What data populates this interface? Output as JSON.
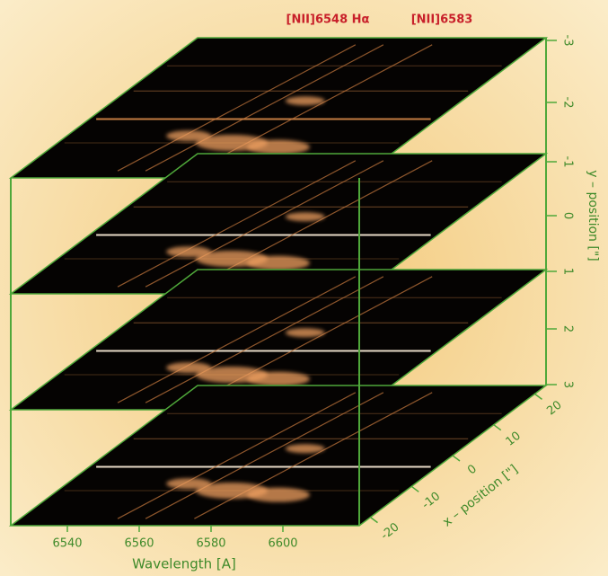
{
  "annotations": [
    "[NII]6548 Hα",
    "[NII]6583"
  ],
  "wavelength_axis": {
    "label": "Wavelength [A]",
    "ticks": [
      "6540",
      "6560",
      "6580",
      "6600"
    ]
  },
  "x_axis": {
    "label": "x – position [\"]",
    "ticks": [
      "-20",
      "-10",
      "0",
      "10",
      "20"
    ]
  },
  "y_axis": {
    "label": "y – position [\"]",
    "ticks": [
      "-3",
      "-2",
      "-1",
      "0",
      "1",
      "2",
      "3"
    ]
  }
}
